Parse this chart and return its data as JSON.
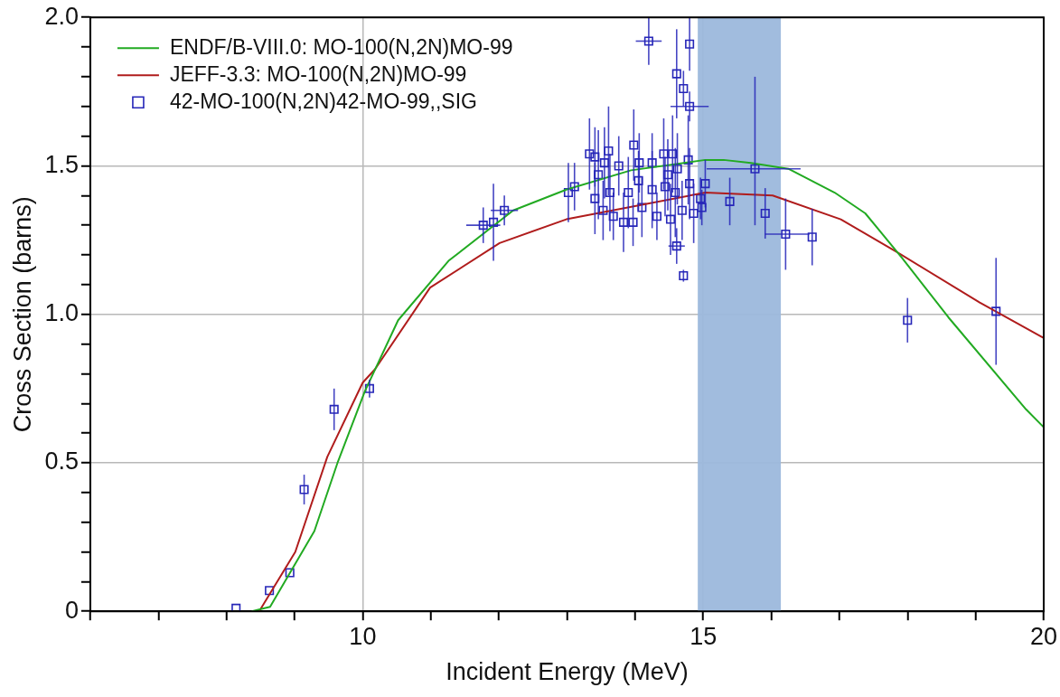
{
  "chart_data": {
    "type": "line",
    "xlabel": "Incident Energy (MeV)",
    "ylabel": "Cross Section (barns)",
    "xlim": [
      6,
      20
    ],
    "ylim": [
      0,
      2
    ],
    "xticks": [
      {
        "value": 6,
        "label": null
      },
      {
        "value": 7,
        "label": null
      },
      {
        "value": 8,
        "label": null
      },
      {
        "value": 9,
        "label": null
      },
      10,
      {
        "value": 11,
        "label": null
      },
      {
        "value": 12,
        "label": null
      },
      {
        "value": 13,
        "label": null
      },
      {
        "value": 14,
        "label": null
      },
      15,
      {
        "value": 16,
        "label": null
      },
      {
        "value": 17,
        "label": null
      },
      {
        "value": 18,
        "label": null
      },
      {
        "value": 19,
        "label": null
      },
      20
    ],
    "yticks": [
      0,
      {
        "value": 0.1,
        "label": null
      },
      {
        "value": 0.2,
        "label": null
      },
      {
        "value": 0.3,
        "label": null
      },
      {
        "value": 0.4,
        "label": null
      },
      0.5,
      {
        "value": 0.6,
        "label": null
      },
      {
        "value": 0.7,
        "label": null
      },
      {
        "value": 0.8,
        "label": null
      },
      {
        "value": 0.9,
        "label": null
      },
      {
        "value": 1,
        "label": "1.0"
      },
      {
        "value": 1.1,
        "label": null
      },
      {
        "value": 1.2,
        "label": null
      },
      {
        "value": 1.3,
        "label": null
      },
      {
        "value": 1.4,
        "label": null
      },
      1.5,
      {
        "value": 1.6,
        "label": null
      },
      {
        "value": 1.7,
        "label": null
      },
      {
        "value": 1.8,
        "label": null
      },
      {
        "value": 1.9,
        "label": null
      },
      {
        "value": 2,
        "label": "2.0"
      }
    ],
    "grid": true,
    "legend": "top left",
    "line_style": "solid",
    "bands": [
      {
        "axis": "x",
        "from": 14.92,
        "to": 16.14,
        "color": "#9cb8dc"
      }
    ],
    "series": [
      {
        "name": "ENDF/B-VIII.0: MO-100(N,2N)MO-99",
        "color": "#22aa22",
        "marker": "none",
        "x": [
          8.37,
          8.64,
          9.29,
          9.63,
          10.03,
          10.52,
          11.26,
          12.21,
          12.99,
          13.94,
          15.03,
          15.3,
          15.7,
          16.25,
          16.93,
          17.38,
          17.92,
          18.6,
          19.74,
          20
        ],
        "values": [
          0,
          0.015,
          0.27,
          0.5,
          0.74,
          0.98,
          1.18,
          1.35,
          1.42,
          1.485,
          1.52,
          1.52,
          1.51,
          1.49,
          1.41,
          1.34,
          1.19,
          0.99,
          0.68,
          0.62
        ]
      },
      {
        "name": "JEFF-3.3: MO-100(N,2N)MO-99",
        "color": "#b01c1c",
        "marker": "none",
        "x": [
          8.48,
          9.01,
          9.48,
          10.0,
          10.18,
          10.99,
          12.01,
          12.99,
          15.03,
          16.02,
          17.02,
          17.84,
          19.06,
          20
        ],
        "values": [
          0,
          0.2,
          0.52,
          0.77,
          0.815,
          1.09,
          1.24,
          1.32,
          1.41,
          1.4,
          1.32,
          1.21,
          1.04,
          0.92
        ]
      },
      {
        "name": "42-MO-100(N,2N)42-MO-99,,SIG",
        "color": "#2626b8",
        "type": "scatter",
        "marker": "square",
        "x": [
          8.14,
          8.63,
          8.93,
          9.14,
          9.58,
          10.1,
          11.77,
          11.92,
          12.08,
          13.02,
          13.11,
          13.33,
          13.41,
          13.41,
          13.46,
          13.53,
          13.55,
          13.61,
          13.63,
          13.68,
          13.76,
          13.83,
          13.9,
          13.97,
          13.98,
          14.05,
          14.06,
          14.1,
          14.2,
          14.25,
          14.25,
          14.32,
          14.42,
          14.44,
          14.48,
          14.52,
          14.55,
          14.59,
          14.61,
          14.61,
          14.62,
          14.69,
          14.71,
          14.71,
          14.78,
          14.8,
          14.8,
          14.8,
          14.86,
          14.96,
          14.98,
          15.03,
          15.39,
          15.76,
          15.91,
          16.21,
          16.6,
          18.0,
          19.3
        ],
        "values": [
          0.01,
          0.07,
          0.13,
          0.41,
          0.68,
          0.75,
          1.3,
          1.31,
          1.35,
          1.41,
          1.43,
          1.54,
          1.53,
          1.39,
          1.47,
          1.35,
          1.51,
          1.55,
          1.41,
          1.33,
          1.5,
          1.31,
          1.41,
          1.31,
          1.57,
          1.45,
          1.51,
          1.36,
          1.92,
          1.51,
          1.42,
          1.33,
          1.54,
          1.43,
          1.47,
          1.32,
          1.54,
          1.41,
          1.81,
          1.23,
          1.49,
          1.35,
          1.76,
          1.13,
          1.52,
          1.91,
          1.7,
          1.44,
          1.34,
          1.39,
          1.36,
          1.44,
          1.38,
          1.49,
          1.34,
          1.27,
          1.26,
          0.98,
          1.01
        ],
        "errors": [
          null,
          null,
          null,
          0.05,
          0.07,
          0.03,
          0.06,
          0.13,
          0.05,
          0.1,
          0.08,
          0.12,
          0.1,
          0.12,
          0.15,
          0.1,
          0.12,
          0.15,
          0.13,
          0.08,
          0.1,
          0.1,
          0.12,
          0.08,
          0.12,
          0.1,
          0.1,
          0.1,
          0.08,
          0.1,
          0.13,
          0.08,
          0.12,
          0.1,
          0.12,
          0.12,
          0.13,
          0.15,
          0.15,
          0.06,
          0.12,
          0.1,
          0.06,
          0.02,
          0.15,
          0.09,
          0.05,
          0.12,
          0.1,
          0.07,
          0.06,
          0.08,
          0.08,
          [
            1.3,
            1.8
          ],
          0.085,
          0.12,
          0.095,
          0.075,
          0.18
        ],
        "xerrors": [
          null,
          null,
          null,
          null,
          null,
          null,
          0.25,
          null,
          0.2,
          null,
          null,
          null,
          null,
          null,
          null,
          null,
          null,
          null,
          null,
          null,
          null,
          null,
          null,
          null,
          null,
          null,
          null,
          null,
          0.19,
          null,
          null,
          null,
          null,
          null,
          null,
          null,
          null,
          null,
          null,
          0.12,
          null,
          null,
          null,
          null,
          null,
          null,
          0.28,
          null,
          null,
          null,
          null,
          null,
          null,
          [
            15.05,
            16.43
          ],
          null,
          [
            15.91,
            16.56
          ],
          null,
          null,
          null
        ]
      }
    ]
  }
}
